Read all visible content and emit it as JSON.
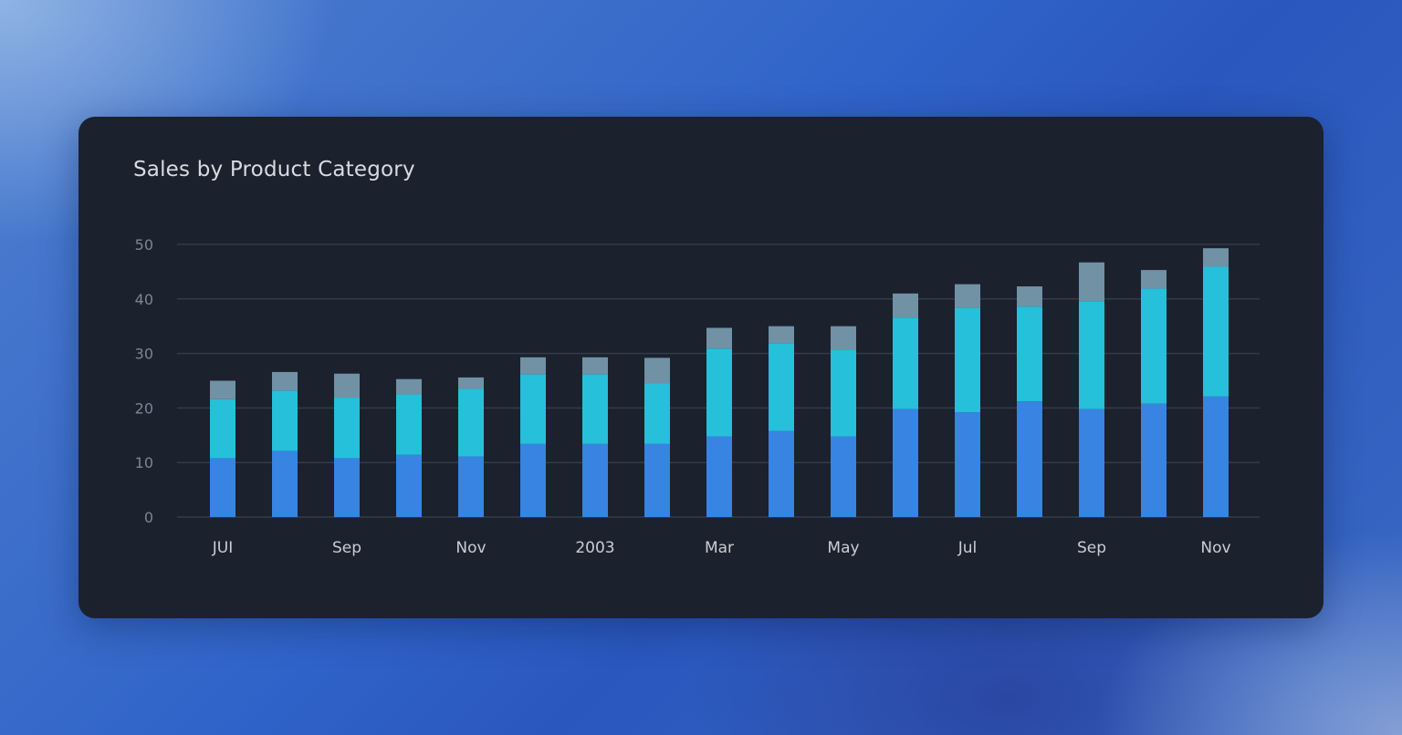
{
  "card": {
    "title": "Sales by Product Category"
  },
  "chart_data": {
    "type": "bar",
    "stacked": true,
    "title": "Sales by Product Category",
    "xlabel": "",
    "ylabel": "",
    "ylim": [
      0,
      50
    ],
    "yticks": [
      0,
      10,
      20,
      30,
      40,
      50
    ],
    "grid": true,
    "legend": "none",
    "x_tick_labels": [
      {
        "index": 0,
        "label": "JUI"
      },
      {
        "index": 2,
        "label": "Sep"
      },
      {
        "index": 4,
        "label": "Nov"
      },
      {
        "index": 6,
        "label": "2003"
      },
      {
        "index": 8,
        "label": "Mar"
      },
      {
        "index": 10,
        "label": "May"
      },
      {
        "index": 12,
        "label": "Jul"
      },
      {
        "index": 14,
        "label": "Sep"
      },
      {
        "index": 16,
        "label": "Nov"
      }
    ],
    "series": [
      {
        "color": "#3784e2",
        "values": [
          10.8,
          12.1,
          10.8,
          11.4,
          11.1,
          13.4,
          13.4,
          13.4,
          14.8,
          15.8,
          14.8,
          19.8,
          19.2,
          21.2,
          19.8,
          20.8,
          22.1
        ]
      },
      {
        "color": "#26c0da",
        "values": [
          10.8,
          11.1,
          11.1,
          11.1,
          12.4,
          12.8,
          12.8,
          11.1,
          16.1,
          16.1,
          15.8,
          16.8,
          19.1,
          17.4,
          19.8,
          21.1,
          23.8
        ]
      },
      {
        "color": "#7191a5",
        "values": [
          3.4,
          3.4,
          4.4,
          2.8,
          2.1,
          3.1,
          3.1,
          4.7,
          3.8,
          3.1,
          4.4,
          4.4,
          4.4,
          3.7,
          7.1,
          3.4,
          3.4
        ]
      }
    ]
  },
  "colors": {
    "card_background": "#1b212d",
    "gridline": "#343b48",
    "axis_tick_text": "#7d8594",
    "x_label_text": "#c9ced6"
  }
}
